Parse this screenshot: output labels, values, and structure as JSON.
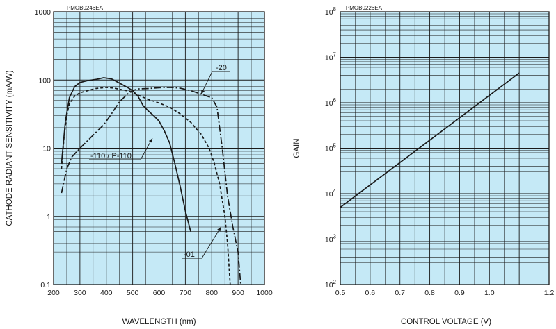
{
  "colors": {
    "plot_background": "#c5e9f6",
    "grid": "#1a1a1a",
    "curve": "#1a1a1a",
    "text": "#1a1a1a"
  },
  "chart_data": [
    {
      "type": "line",
      "figure_code": "TPMOB0246EA",
      "title": "",
      "xlabel": "WAVELENGTH (nm)",
      "ylabel": "CATHODE RADIANT SENSITIVITY (mA/W)",
      "xlim": [
        200,
        1000
      ],
      "ylim": [
        0.1,
        1000
      ],
      "yscale": "log",
      "grid": true,
      "x_ticks": [
        "200",
        "300",
        "400",
        "500",
        "600",
        "700",
        "800",
        "900",
        "1000"
      ],
      "y_ticks": [
        "0.1",
        "1",
        "10",
        "100",
        "1000"
      ],
      "series": [
        {
          "name": "-110 / P-110",
          "style": "solid",
          "points": [
            [
              230,
              6
            ],
            [
              245,
              25
            ],
            [
              260,
              55
            ],
            [
              280,
              80
            ],
            [
              300,
              92
            ],
            [
              330,
              98
            ],
            [
              360,
              102
            ],
            [
              390,
              108
            ],
            [
              420,
              104
            ],
            [
              450,
              90
            ],
            [
              480,
              78
            ],
            [
              500,
              70
            ],
            [
              520,
              58
            ],
            [
              540,
              42
            ],
            [
              560,
              35
            ],
            [
              580,
              30
            ],
            [
              600,
              25
            ],
            [
              620,
              18
            ],
            [
              640,
              12
            ],
            [
              660,
              6
            ],
            [
              680,
              2.8
            ],
            [
              700,
              1.2
            ],
            [
              720,
              0.6
            ]
          ]
        },
        {
          "name": "-01",
          "style": "dashed",
          "points": [
            [
              230,
              5
            ],
            [
              240,
              15
            ],
            [
              250,
              30
            ],
            [
              260,
              45
            ],
            [
              280,
              58
            ],
            [
              300,
              65
            ],
            [
              330,
              70
            ],
            [
              360,
              75
            ],
            [
              400,
              78
            ],
            [
              430,
              76
            ],
            [
              460,
              72
            ],
            [
              490,
              68
            ],
            [
              520,
              60
            ],
            [
              560,
              52
            ],
            [
              600,
              46
            ],
            [
              640,
              40
            ],
            [
              680,
              32
            ],
            [
              720,
              24
            ],
            [
              760,
              16
            ],
            [
              790,
              10
            ],
            [
              810,
              6
            ],
            [
              830,
              3
            ],
            [
              850,
              1
            ],
            [
              860,
              0.4
            ],
            [
              870,
              0.1
            ]
          ]
        },
        {
          "name": "-20",
          "style": "dash-dot",
          "points": [
            [
              230,
              2.2
            ],
            [
              250,
              5
            ],
            [
              270,
              7.5
            ],
            [
              300,
              10
            ],
            [
              330,
              13
            ],
            [
              360,
              17
            ],
            [
              390,
              22
            ],
            [
              420,
              32
            ],
            [
              450,
              48
            ],
            [
              480,
              62
            ],
            [
              500,
              70
            ],
            [
              520,
              74
            ],
            [
              560,
              75
            ],
            [
              600,
              77
            ],
            [
              640,
              78
            ],
            [
              680,
              76
            ],
            [
              720,
              70
            ],
            [
              760,
              62
            ],
            [
              800,
              55
            ],
            [
              820,
              40
            ],
            [
              840,
              10
            ],
            [
              860,
              2
            ],
            [
              880,
              0.7
            ],
            [
              900,
              0.3
            ],
            [
              910,
              0.1
            ]
          ]
        }
      ],
      "annotations": [
        "-20",
        "-110 / P-110",
        "-01"
      ]
    },
    {
      "type": "line",
      "figure_code": "TPMOB0226EA",
      "title": "",
      "xlabel": "CONTROL VOLTAGE (V)",
      "ylabel": "GAIN",
      "xlim": [
        0.5,
        1.2
      ],
      "ylim": [
        100,
        100000000
      ],
      "yscale": "log",
      "grid": true,
      "x_ticks": [
        "0.5",
        "0.6",
        "0.7",
        "0.8",
        "0.9",
        "1.0",
        "1.2"
      ],
      "y_ticks": [
        {
          "base": "10",
          "exp": "2"
        },
        {
          "base": "10",
          "exp": "3"
        },
        {
          "base": "10",
          "exp": "4"
        },
        {
          "base": "10",
          "exp": "5"
        },
        {
          "base": "10",
          "exp": "6"
        },
        {
          "base": "10",
          "exp": "7"
        },
        {
          "base": "10",
          "exp": "8"
        }
      ],
      "series": [
        {
          "style": "solid",
          "points": [
            [
              0.5,
              5000
            ],
            [
              1.1,
              4500000
            ]
          ]
        }
      ]
    }
  ]
}
